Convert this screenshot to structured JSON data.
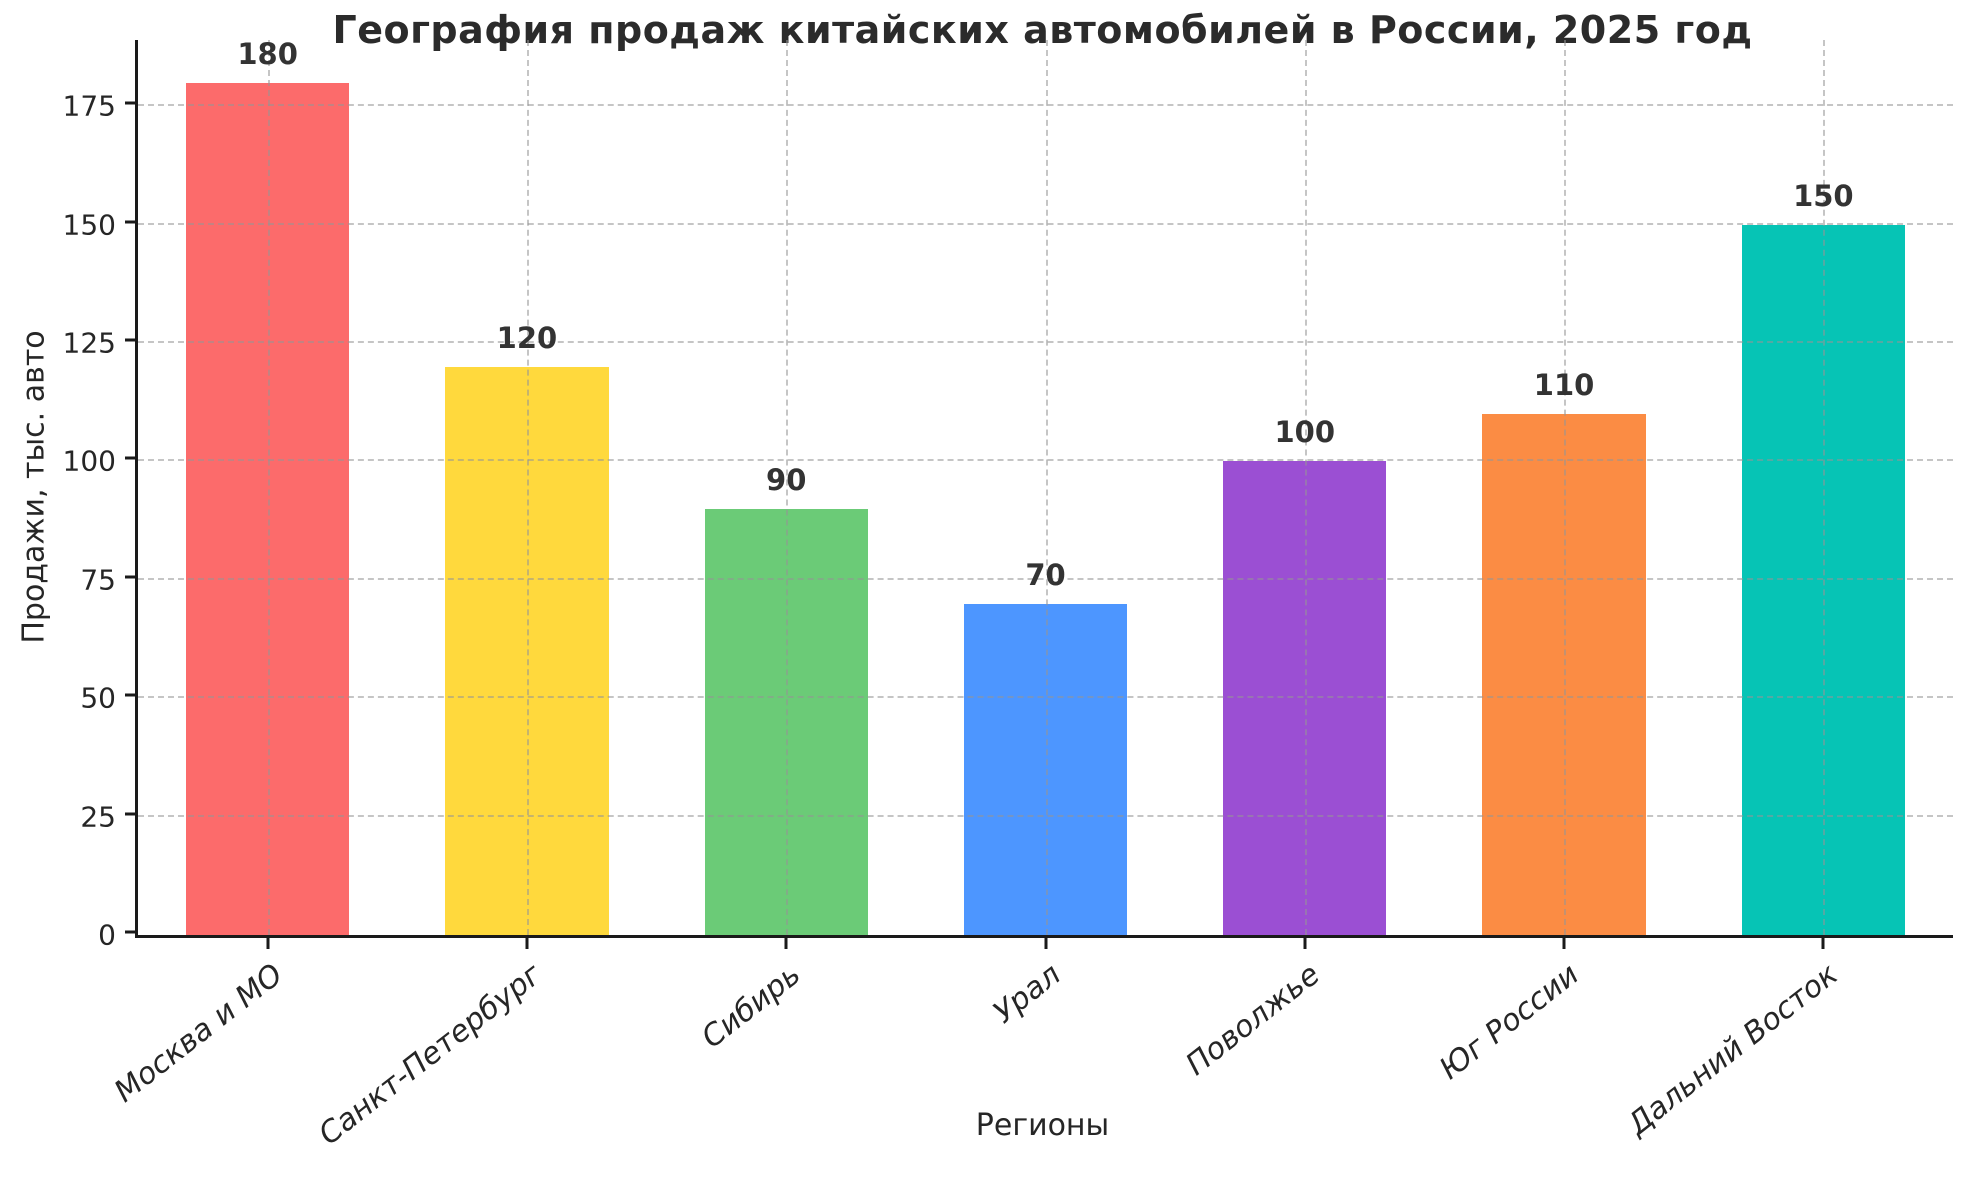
{
  "chart_data": {
    "type": "bar",
    "title": "География продаж китайских автомобилей в России, 2025 год",
    "xlabel": "Регионы",
    "ylabel": "Продажи, тыс. авто",
    "categories": [
      "Москва и МО",
      "Санкт-Петербург",
      "Сибирь",
      "Урал",
      "Поволжье",
      "Юг России",
      "Дальний Восток"
    ],
    "values": [
      180,
      120,
      90,
      70,
      100,
      110,
      150
    ],
    "bar_colors": [
      "#FC6B6B",
      "#FFD93D",
      "#6BCB77",
      "#4D96FF",
      "#9B4FD3",
      "#FB8C44",
      "#06C4B5"
    ],
    "value_labels": [
      "180",
      "120",
      "90",
      "70",
      "100",
      "110",
      "150"
    ],
    "yticks": [
      0,
      25,
      50,
      75,
      100,
      125,
      150,
      175
    ],
    "ylim": [
      0,
      189
    ],
    "grid": "dashed, drawn over bars",
    "legend": "none",
    "x_tick_label_style": "italic, rotated ~38deg",
    "colors": {
      "background": "#ffffff",
      "axis_spine": "#1a1a1a",
      "grid_line": "#969696",
      "title_text": "#2b2b2b",
      "tick_text": "#262626",
      "value_label_text": "#333333"
    }
  }
}
